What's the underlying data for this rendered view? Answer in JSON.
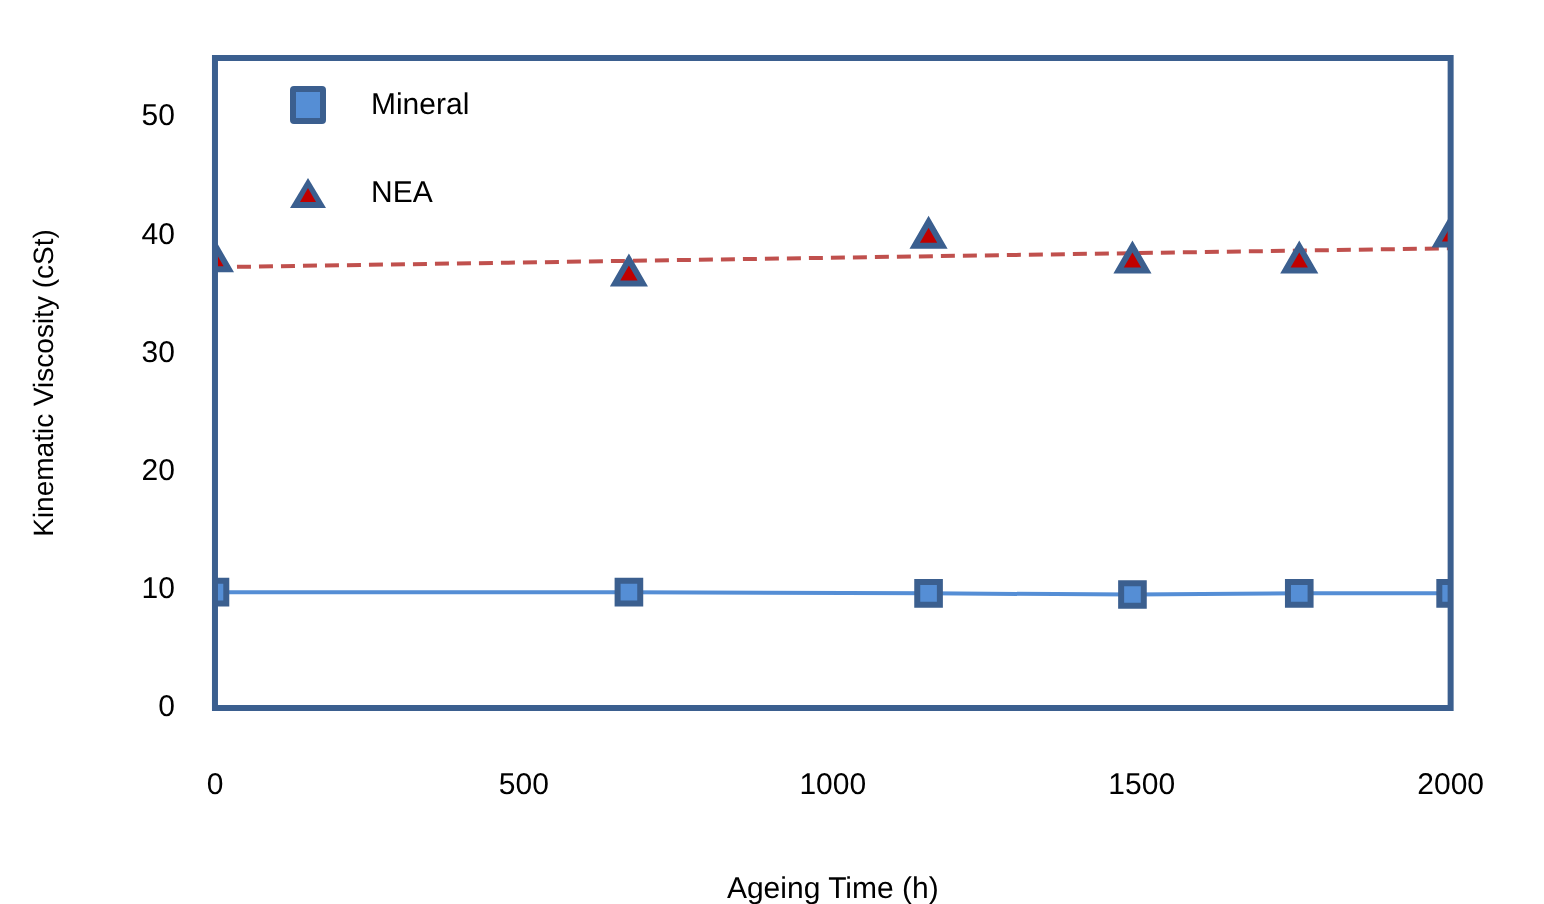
{
  "chart_data": {
    "type": "line",
    "xlabel": "Ageing Time (h)",
    "ylabel": "Kinematic Viscosity (cSt)",
    "xlim": [
      0,
      2000
    ],
    "xticks": [
      0,
      500,
      1000,
      1500,
      2000
    ],
    "ylim": [
      0,
      55
    ],
    "yticks": [
      0,
      10,
      20,
      30,
      40,
      50
    ],
    "grid": false,
    "legend": "top left",
    "series": [
      {
        "name": "Mineral",
        "marker": "square",
        "line_style": "solid",
        "color": "#558ed5",
        "x": [
          0,
          670,
          1155,
          1485,
          1755,
          2000
        ],
        "values": [
          9.8,
          9.8,
          9.7,
          9.6,
          9.7,
          9.7
        ]
      },
      {
        "name": "NEA",
        "type": "scatter",
        "marker": "triangle",
        "color": "#c00000",
        "x": [
          0,
          670,
          1155,
          1485,
          1755,
          2000
        ],
        "values": [
          37.8,
          36.6,
          39.8,
          37.7,
          37.7,
          39.9
        ]
      },
      {
        "marker": "none",
        "line_style": "dashed",
        "color": "#c0504d",
        "x": [
          0,
          2000
        ],
        "values": [
          37.3,
          38.9
        ]
      }
    ]
  }
}
